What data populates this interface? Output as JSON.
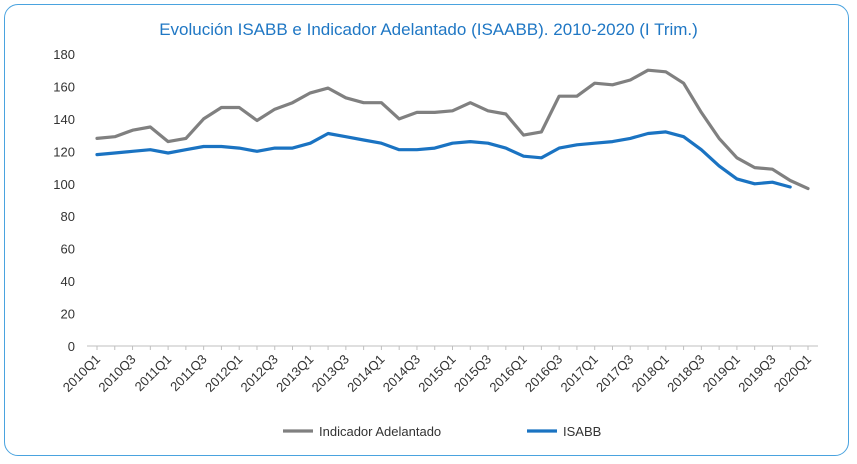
{
  "chart_data": {
    "type": "line",
    "title": "Evolución ISABB e Indicador Adelantado (ISAABB). 2010-2020 (I Trim.)",
    "xlabel": "",
    "ylabel": "",
    "ylim": [
      0,
      180
    ],
    "yticks": [
      0,
      20,
      40,
      60,
      80,
      100,
      120,
      140,
      160,
      180
    ],
    "x": [
      "2010Q1",
      "2010Q2",
      "2010Q3",
      "2010Q4",
      "2011Q1",
      "2011Q2",
      "2011Q3",
      "2011Q4",
      "2012Q1",
      "2012Q2",
      "2012Q3",
      "2012Q4",
      "2013Q1",
      "2013Q2",
      "2013Q3",
      "2013Q4",
      "2014Q1",
      "2014Q2",
      "2014Q3",
      "2014Q4",
      "2015Q1",
      "2015Q2",
      "2015Q3",
      "2015Q4",
      "2016Q1",
      "2016Q2",
      "2016Q3",
      "2016Q4",
      "2017Q1",
      "2017Q2",
      "2017Q3",
      "2017Q4",
      "2018Q1",
      "2018Q2",
      "2018Q3",
      "2018Q4",
      "2019Q1",
      "2019Q2",
      "2019Q3",
      "2019Q4",
      "2020Q1"
    ],
    "xticks_shown": [
      "2010Q1",
      "2010Q3",
      "2011Q1",
      "2011Q3",
      "2012Q1",
      "2012Q3",
      "2013Q1",
      "2013Q3",
      "2014Q1",
      "2014Q3",
      "2015Q1",
      "2015Q3",
      "2016Q1",
      "2016Q3",
      "2017Q1",
      "2017Q3",
      "2018Q1",
      "2018Q3",
      "2019Q1",
      "2019Q3",
      "2020Q1"
    ],
    "legend_position": "bottom",
    "grid": false,
    "series": [
      {
        "name": "Indicador Adelantado",
        "color": "#808080",
        "values": [
          128,
          129,
          133,
          135,
          126,
          128,
          140,
          147,
          147,
          139,
          146,
          150,
          156,
          159,
          153,
          150,
          150,
          140,
          144,
          144,
          145,
          150,
          145,
          143,
          130,
          132,
          154,
          154,
          162,
          161,
          164,
          170,
          169,
          162,
          144,
          128,
          116,
          110,
          109,
          102,
          97
        ]
      },
      {
        "name": "ISABB",
        "color": "#1a73c2",
        "values": [
          118,
          119,
          120,
          121,
          119,
          121,
          123,
          123,
          122,
          120,
          122,
          122,
          125,
          131,
          129,
          127,
          125,
          121,
          121,
          122,
          125,
          126,
          125,
          122,
          117,
          116,
          122,
          124,
          125,
          126,
          128,
          131,
          132,
          129,
          121,
          111,
          103,
          100,
          101,
          98,
          null
        ]
      }
    ]
  }
}
